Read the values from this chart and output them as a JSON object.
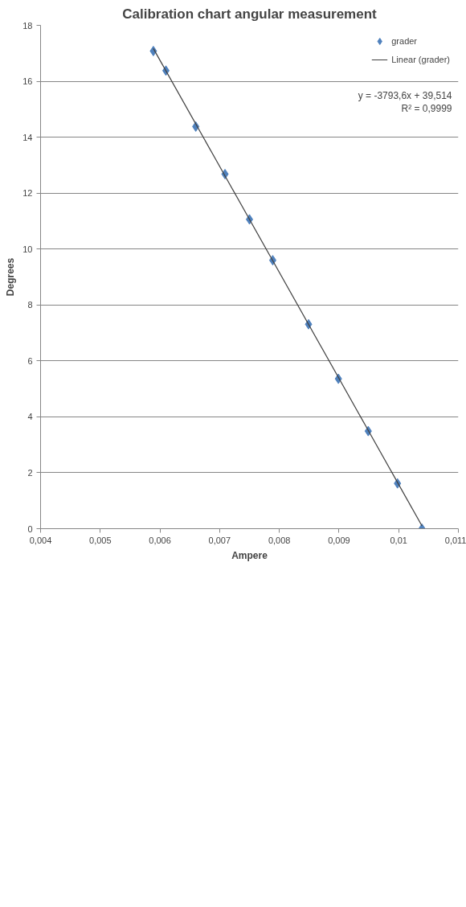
{
  "chart_data": {
    "type": "scatter",
    "title": "Calibration chart angular measurement",
    "xlabel": "Ampere",
    "ylabel": "Degrees",
    "xlim": [
      0.004,
      0.011
    ],
    "xticks": [
      {
        "value": 0.004,
        "label": "0,004"
      },
      {
        "value": 0.005,
        "label": "0,005"
      },
      {
        "value": 0.006,
        "label": "0,006"
      },
      {
        "value": 0.007,
        "label": "0,007"
      },
      {
        "value": 0.008,
        "label": "0,008"
      },
      {
        "value": 0.009,
        "label": "0,009"
      },
      {
        "value": 0.01,
        "label": "0,01"
      },
      {
        "value": 0.011,
        "label": "0,011"
      }
    ],
    "ylim": [
      0,
      18
    ],
    "yticks": [
      0,
      2,
      4,
      6,
      8,
      10,
      12,
      14,
      16,
      18
    ],
    "grid": "y",
    "legend": "right",
    "annotations": [
      "y = -3793,6x + 39,514",
      "R² = 0,9999"
    ],
    "series": [
      {
        "name": "grader",
        "marker": "diamond",
        "color": "#4f81bd",
        "x": [
          0.00589,
          0.0061,
          0.0066,
          0.00709,
          0.0075,
          0.00789,
          0.00849,
          0.00899,
          0.00949,
          0.00998,
          0.01039
        ],
        "values": [
          17.08,
          16.38,
          14.38,
          12.68,
          11.06,
          9.6,
          7.31,
          5.36,
          3.49,
          1.62,
          0.0
        ]
      },
      {
        "name": "Linear (grader)",
        "type": "line",
        "color": "#404040",
        "x": [
          0.00589,
          0.01039
        ],
        "values": [
          17.17,
          0.1
        ]
      }
    ]
  }
}
